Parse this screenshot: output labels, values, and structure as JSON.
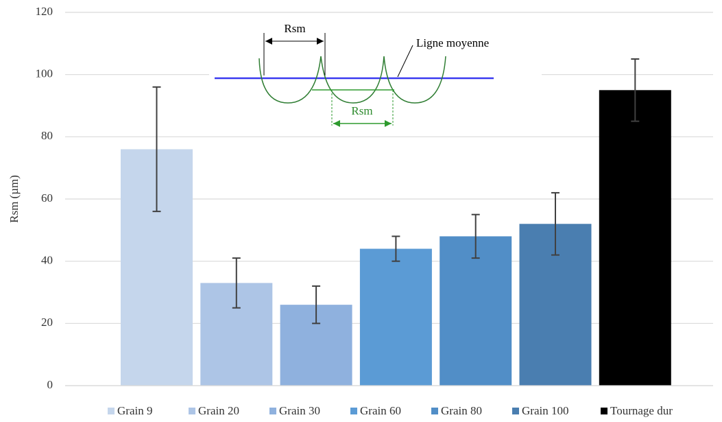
{
  "chart_data": {
    "type": "bar",
    "y_label": "Rsm (µm)",
    "ylim": [
      0,
      120
    ],
    "yticks": [
      0,
      20,
      40,
      60,
      80,
      100,
      120
    ],
    "grid": true,
    "legend": "bottom",
    "error_color": "#404040",
    "series": [
      {
        "name": "Grain 9",
        "color": "#c5d6ec",
        "values": [
          76
        ],
        "errors": [
          20
        ]
      },
      {
        "name": "Grain 20",
        "color": "#adc5e6",
        "values": [
          33
        ],
        "errors": [
          8
        ]
      },
      {
        "name": "Grain 30",
        "color": "#8fb1de",
        "values": [
          26
        ],
        "errors": [
          6
        ]
      },
      {
        "name": "Grain 60",
        "color": "#5b9bd5",
        "values": [
          44
        ],
        "errors": [
          4
        ]
      },
      {
        "name": "Grain 80",
        "color": "#518ec7",
        "values": [
          48
        ],
        "errors": [
          7
        ]
      },
      {
        "name": "Grain 100",
        "color": "#4a7eb0",
        "values": [
          52
        ],
        "errors": [
          10
        ]
      },
      {
        "name": "Tournage dur",
        "color": "#000000",
        "values": [
          95
        ],
        "errors": [
          10
        ]
      }
    ],
    "annotations": [
      "Rsm",
      "Ligne moyenne",
      "Rsm"
    ]
  }
}
